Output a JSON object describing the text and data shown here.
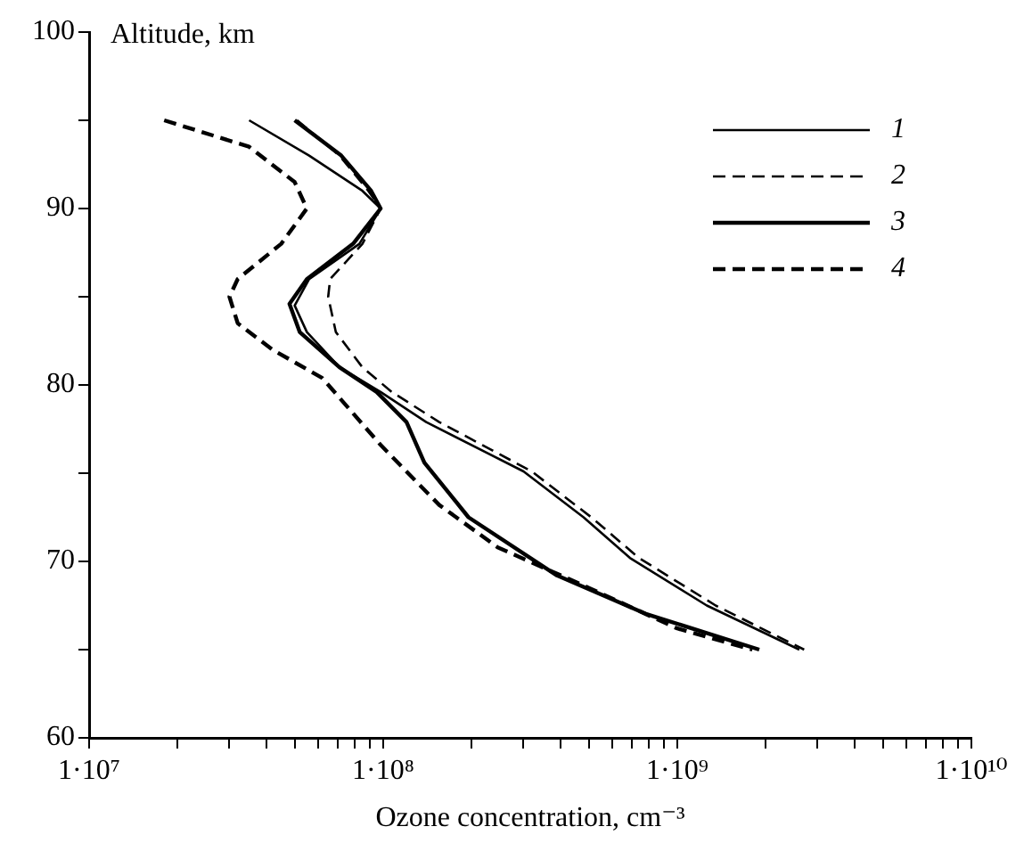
{
  "chart_data": {
    "type": "line",
    "xlabel": "Ozone concentration, cm⁻³",
    "ylabel": "Altitude, km",
    "log": "x",
    "xlim": [
      10000000,
      10000000000
    ],
    "ylim": [
      60,
      100
    ],
    "xticks": [
      {
        "value": 10000000,
        "label": "1·10⁷"
      },
      {
        "value": 20000000,
        "label": null
      },
      {
        "value": 30000000,
        "label": null
      },
      {
        "value": 40000000,
        "label": null
      },
      {
        "value": 50000000,
        "label": null
      },
      {
        "value": 60000000,
        "label": null
      },
      {
        "value": 70000000,
        "label": null
      },
      {
        "value": 80000000,
        "label": null
      },
      {
        "value": 90000000,
        "label": null
      },
      {
        "value": 100000000,
        "label": "1·10⁸"
      },
      {
        "value": 200000000,
        "label": null
      },
      {
        "value": 300000000,
        "label": null
      },
      {
        "value": 400000000,
        "label": null
      },
      {
        "value": 500000000,
        "label": null
      },
      {
        "value": 600000000,
        "label": null
      },
      {
        "value": 700000000,
        "label": null
      },
      {
        "value": 800000000,
        "label": null
      },
      {
        "value": 900000000,
        "label": null
      },
      {
        "value": 1000000000,
        "label": "1·10⁹"
      },
      {
        "value": 2000000000,
        "label": null
      },
      {
        "value": 3000000000,
        "label": null
      },
      {
        "value": 4000000000,
        "label": null
      },
      {
        "value": 5000000000,
        "label": null
      },
      {
        "value": 6000000000,
        "label": null
      },
      {
        "value": 7000000000,
        "label": null
      },
      {
        "value": 8000000000,
        "label": null
      },
      {
        "value": 9000000000,
        "label": null
      },
      {
        "value": 10000000000,
        "label": "1·10¹⁰"
      }
    ],
    "yticks": [
      60,
      {
        "value": 65,
        "label": null
      },
      70,
      {
        "value": 75,
        "label": null
      },
      80,
      {
        "value": 85,
        "label": null
      },
      90,
      {
        "value": 95,
        "label": null
      },
      100
    ],
    "grid": false,
    "legend": "top right",
    "marker": "none",
    "series": [
      {
        "name": "1",
        "color": "#000000",
        "line_style": "solid",
        "x": [
          35000000,
          56000000,
          85000000,
          98000000,
          83000000,
          56000000,
          50000000,
          55000000,
          71000000,
          98000000,
          140000000,
          300000000,
          480000000,
          690000000,
          1260000000,
          2600000000
        ],
        "values": [
          95,
          93,
          91,
          90,
          88,
          86,
          84.5,
          83,
          81,
          79.6,
          77.9,
          75.1,
          72.5,
          70.2,
          67.5,
          65
        ]
      },
      {
        "name": "2",
        "color": "#000000",
        "line_style": "dashed",
        "x": [
          51000000,
          71000000,
          89000000,
          98000000,
          85000000,
          66000000,
          65000000,
          69000000,
          85000000,
          107000000,
          155000000,
          320000000,
          510000000,
          740000000,
          1350000000,
          2700000000
        ],
        "values": [
          95,
          93,
          91,
          90,
          88,
          86,
          85,
          83,
          81,
          79.6,
          77.9,
          75.1,
          72.5,
          70.2,
          67.5,
          65
        ]
      },
      {
        "name": "3",
        "color": "#000000",
        "line_style": "solid",
        "x": [
          50000000,
          72000000,
          91000000,
          98000000,
          79000000,
          55000000,
          48000000,
          52000000,
          71000000,
          95000000,
          120000000,
          138000000,
          195000000,
          390000000,
          790000000,
          1900000000
        ],
        "values": [
          95,
          93,
          91,
          90,
          88,
          86,
          84.6,
          83,
          81,
          79.6,
          77.9,
          75.6,
          72.5,
          69.2,
          67,
          65
        ]
      },
      {
        "name": "4",
        "color": "#000000",
        "line_style": "dashed",
        "x": [
          18000000,
          35000000,
          50000000,
          55000000,
          45000000,
          32000000,
          30000000,
          32000000,
          42000000,
          62000000,
          98000000,
          155000000,
          245000000,
          500000000,
          1000000000,
          1800000000
        ],
        "values": [
          95,
          93.5,
          91.5,
          90,
          88,
          86,
          85,
          83.5,
          82,
          80.4,
          76.6,
          73.2,
          70.8,
          68.5,
          66.2,
          65
        ]
      }
    ]
  }
}
